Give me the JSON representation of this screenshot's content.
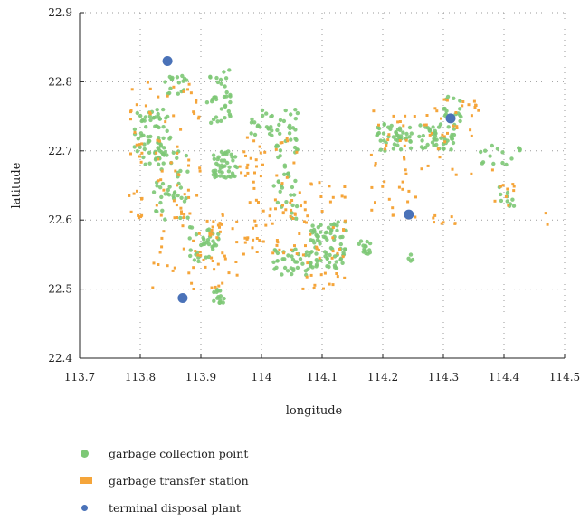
{
  "chart_data": {
    "type": "scatter",
    "xlabel": "longitude",
    "ylabel": "latitude",
    "xlim": [
      113.7,
      114.5
    ],
    "ylim": [
      22.4,
      22.9
    ],
    "x_ticks": [
      "113.7",
      "113.8",
      "113.9",
      "114",
      "114.1",
      "114.2",
      "114.3",
      "114.4",
      "114.5"
    ],
    "y_ticks": [
      "22.4",
      "22.5",
      "22.6",
      "22.7",
      "22.8",
      "22.9"
    ],
    "grid": "dotted",
    "legend_position": "bottom",
    "colors": {
      "garbage collection point": "#7dc876",
      "garbage transfer station": "#f5a53a",
      "terminal disposal plant": "#4a72b8"
    },
    "series": [
      {
        "name": "garbage collection point",
        "marker": "circle",
        "clusters": [
          {
            "x": [
              113.79,
              113.85
            ],
            "y": [
              22.68,
              22.76
            ],
            "count": 70
          },
          {
            "x": [
              113.82,
              113.88
            ],
            "y": [
              22.6,
              22.7
            ],
            "count": 45
          },
          {
            "x": [
              113.84,
              113.88
            ],
            "y": [
              22.78,
              22.81
            ],
            "count": 18
          },
          {
            "x": [
              113.88,
              113.93
            ],
            "y": [
              22.54,
              22.59
            ],
            "count": 35
          },
          {
            "x": [
              113.92,
              113.96
            ],
            "y": [
              22.66,
              22.7
            ],
            "count": 45
          },
          {
            "x": [
              113.91,
              113.95
            ],
            "y": [
              22.74,
              22.82
            ],
            "count": 35
          },
          {
            "x": [
              113.92,
              113.94
            ],
            "y": [
              22.48,
              22.5
            ],
            "count": 15
          },
          {
            "x": [
              114.02,
              114.06
            ],
            "y": [
              22.6,
              22.76
            ],
            "count": 55
          },
          {
            "x": [
              113.98,
              114.02
            ],
            "y": [
              22.72,
              22.76
            ],
            "count": 20
          },
          {
            "x": [
              114.02,
              114.08
            ],
            "y": [
              22.52,
              22.56
            ],
            "count": 35
          },
          {
            "x": [
              114.08,
              114.14
            ],
            "y": [
              22.53,
              22.6
            ],
            "count": 80
          },
          {
            "x": [
              114.16,
              114.18
            ],
            "y": [
              22.55,
              22.57
            ],
            "count": 15
          },
          {
            "x": [
              114.19,
              114.25
            ],
            "y": [
              22.7,
              22.74
            ],
            "count": 45
          },
          {
            "x": [
              114.26,
              114.32
            ],
            "y": [
              22.7,
              22.74
            ],
            "count": 45
          },
          {
            "x": [
              114.3,
              114.33
            ],
            "y": [
              22.74,
              22.78
            ],
            "count": 15
          },
          {
            "x": [
              114.36,
              114.43
            ],
            "y": [
              22.68,
              22.71
            ],
            "count": 15
          },
          {
            "x": [
              114.39,
              114.42
            ],
            "y": [
              22.62,
              22.65
            ],
            "count": 10
          },
          {
            "x": [
              114.24,
              114.25
            ],
            "y": [
              22.54,
              22.55
            ],
            "count": 4
          }
        ]
      },
      {
        "name": "garbage transfer station",
        "marker": "square",
        "clusters": [
          {
            "x": [
              113.78,
              113.9
            ],
            "y": [
              22.6,
              22.8
            ],
            "count": 75
          },
          {
            "x": [
              113.82,
              113.96
            ],
            "y": [
              22.5,
              22.62
            ],
            "count": 60
          },
          {
            "x": [
              113.96,
              114.06
            ],
            "y": [
              22.55,
              22.72
            ],
            "count": 75
          },
          {
            "x": [
              114.06,
              114.14
            ],
            "y": [
              22.5,
              22.66
            ],
            "count": 50
          },
          {
            "x": [
              114.18,
              114.28
            ],
            "y": [
              22.6,
              22.76
            ],
            "count": 45
          },
          {
            "x": [
              114.28,
              114.36
            ],
            "y": [
              22.66,
              22.79
            ],
            "count": 30
          },
          {
            "x": [
              114.38,
              114.43
            ],
            "y": [
              22.62,
              22.68
            ],
            "count": 10
          },
          {
            "x": [
              114.28,
              114.32
            ],
            "y": [
              22.59,
              22.61
            ],
            "count": 8
          },
          {
            "x": [
              114.46,
              114.48
            ],
            "y": [
              22.59,
              22.61
            ],
            "count": 2
          }
        ]
      },
      {
        "name": "terminal disposal plant",
        "marker": "circle",
        "points": [
          {
            "x": 113.845,
            "y": 22.83
          },
          {
            "x": 113.87,
            "y": 22.487
          },
          {
            "x": 114.243,
            "y": 22.608
          },
          {
            "x": 114.312,
            "y": 22.747
          }
        ]
      }
    ]
  },
  "legend": {
    "items": [
      {
        "label": "garbage collection point"
      },
      {
        "label": "garbage transfer station"
      },
      {
        "label": "terminal disposal plant"
      }
    ]
  }
}
